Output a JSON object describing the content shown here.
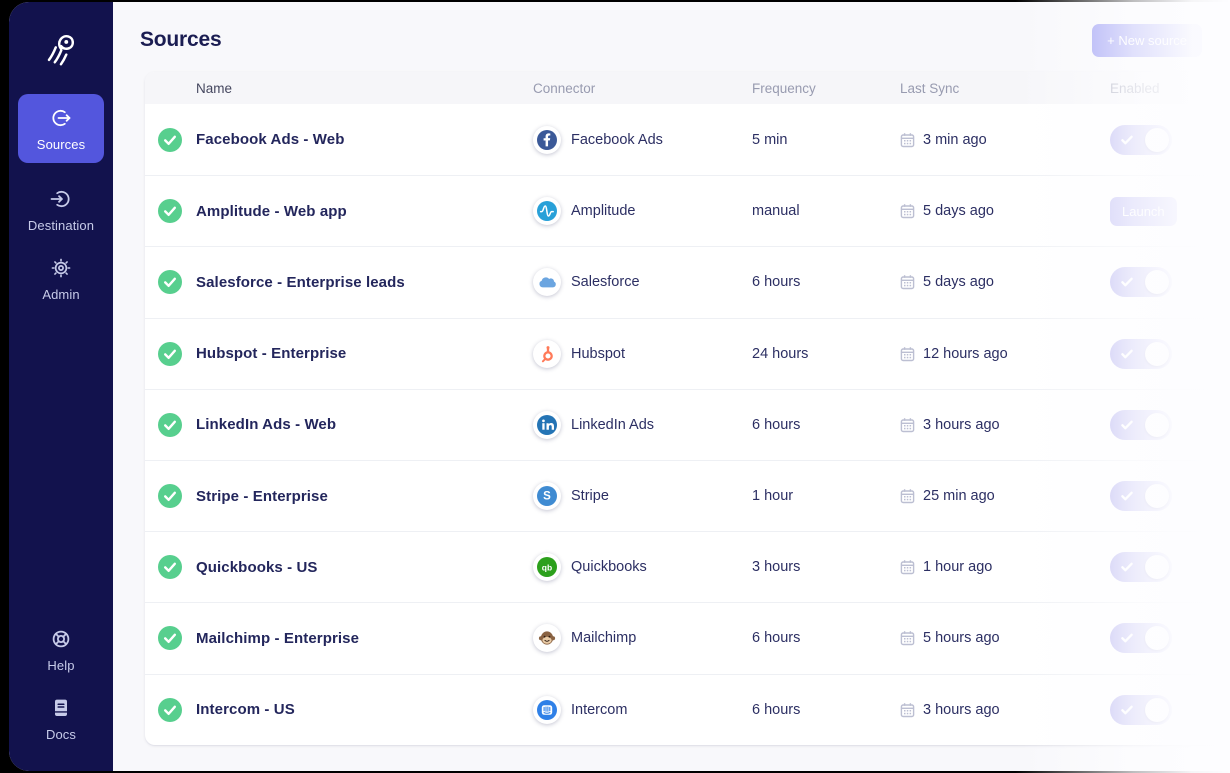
{
  "sidebar": {
    "items": [
      {
        "label": "Sources",
        "icon": "source-out-icon",
        "active": true
      },
      {
        "label": "Destination",
        "icon": "destination-icon",
        "active": false
      },
      {
        "label": "Admin",
        "icon": "gear-icon",
        "active": false
      }
    ],
    "footer_items": [
      {
        "label": "Help",
        "icon": "lifebuoy-icon"
      },
      {
        "label": "Docs",
        "icon": "book-icon"
      }
    ]
  },
  "header": {
    "title": "Sources",
    "new_source_button": "+ New source"
  },
  "table": {
    "columns": [
      "Name",
      "Connector",
      "Frequency",
      "Last Sync",
      "Enabled"
    ],
    "rows": [
      {
        "name": "Facebook Ads - Web",
        "connector": "Facebook Ads",
        "icon": "facebook-ads-icon",
        "frequency": "5 min",
        "last_sync": "3 min ago",
        "status": "success",
        "control": "toggle",
        "enabled": true
      },
      {
        "name": "Amplitude - Web app",
        "connector": "Amplitude",
        "icon": "amplitude-icon",
        "frequency": "manual",
        "last_sync": "5 days ago",
        "status": "success",
        "control": "launch",
        "launch_label": "Launch"
      },
      {
        "name": "Salesforce - Enterprise leads",
        "connector": "Salesforce",
        "icon": "salesforce-icon",
        "frequency": "6 hours",
        "last_sync": "5 days ago",
        "status": "success",
        "control": "toggle",
        "enabled": true
      },
      {
        "name": "Hubspot - Enterprise",
        "connector": "Hubspot",
        "icon": "hubspot-icon",
        "frequency": "24 hours",
        "last_sync": "12 hours ago",
        "status": "success",
        "control": "toggle",
        "enabled": true
      },
      {
        "name": "LinkedIn Ads - Web",
        "connector": "LinkedIn Ads",
        "icon": "linkedin-ads-icon",
        "frequency": "6 hours",
        "last_sync": "3 hours ago",
        "status": "success",
        "control": "toggle",
        "enabled": true
      },
      {
        "name": "Stripe - Enterprise",
        "connector": "Stripe",
        "icon": "stripe-icon",
        "frequency": "1 hour",
        "last_sync": "25 min ago",
        "status": "success",
        "control": "toggle",
        "enabled": true
      },
      {
        "name": "Quickbooks - US",
        "connector": "Quickbooks",
        "icon": "quickbooks-icon",
        "frequency": "3 hours",
        "last_sync": "1 hour ago",
        "status": "success",
        "control": "toggle",
        "enabled": true
      },
      {
        "name": "Mailchimp - Enterprise",
        "connector": "Mailchimp",
        "icon": "mailchimp-icon",
        "frequency": "6 hours",
        "last_sync": "5 hours ago",
        "status": "success",
        "control": "toggle",
        "enabled": true
      },
      {
        "name": "Intercom - US",
        "connector": "Intercom",
        "icon": "intercom-icon",
        "frequency": "6 hours",
        "last_sync": "3 hours ago",
        "status": "success",
        "control": "toggle",
        "enabled": true
      }
    ]
  },
  "colors": {
    "sidebar_bg": "#12124d",
    "active_nav_bg": "#5356dd",
    "accent_button": "#8a8bf2",
    "toggle_on": "#aba8ee",
    "success_green": "#57cf8e",
    "page_bg": "#f8f8fb",
    "brand": {
      "facebook": "#3b5998",
      "amplitude": "#28a0d8",
      "salesforce": "#6ba5e0",
      "hubspot": "#ff7a59",
      "linkedin": "#2474b5",
      "stripe": "#3f8bd2",
      "quickbooks": "#2ca01c",
      "mailchimp": "#8a6343",
      "intercom": "#2f80e7"
    }
  }
}
